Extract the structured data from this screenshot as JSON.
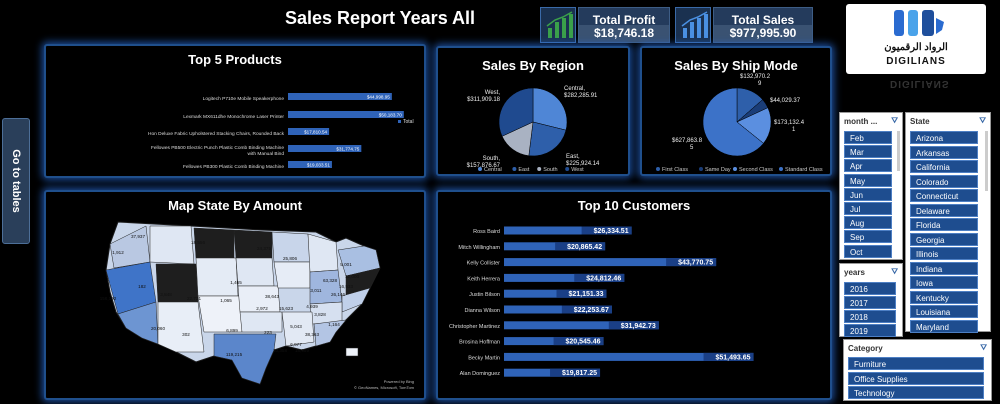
{
  "header": {
    "title": "Sales Report Years All"
  },
  "kpis": {
    "profit_label": "Total Profit",
    "profit_value": "$18,746.18",
    "sales_label": "Total Sales",
    "sales_value": "$977,995.90"
  },
  "logo": {
    "arabic": "الرواد الرقميون",
    "latin": "DIGILIANS"
  },
  "nav": {
    "go_to_tables": "Go to tables"
  },
  "chart_data": [
    {
      "type": "bar",
      "id": "top5",
      "title": "Top 5 Products",
      "categories": [
        "Logitech P710e Mobile Speakerphone",
        "Lexmark MX611dhe Monochrome Laser Printer",
        "Hon Deluxe Fabric Upholstered Stacking Chairs, Rounded Back",
        "Fellowes PB500 Electric Punch Plastic Comb Binding Machine with Manual Bind",
        "Fellowes PB300 Plastic Comb Binding Machine"
      ],
      "values": [
        44998.95,
        50183.7,
        17810.54,
        31774.75,
        19033.51
      ],
      "labels": [
        "$44,998.95",
        "$50,183.70",
        "$17,810.54",
        "$31,774.75",
        "$19,033.51"
      ],
      "legend": "Total"
    },
    {
      "type": "pie",
      "id": "region",
      "title": "Sales By Region",
      "slices": [
        {
          "name": "Central",
          "value": 282285.91,
          "label": "Central, $282,285.91",
          "color": "#4f86d6"
        },
        {
          "name": "East",
          "value": 225924.14,
          "label": "East, $225,924.14",
          "color": "#2e5faa"
        },
        {
          "name": "South",
          "value": 157876.67,
          "label": "South, $157,876.67",
          "color": "#a9b2c2"
        },
        {
          "name": "West",
          "value": 311909.18,
          "label": "West, $311,909.18",
          "color": "#1f4a8f"
        }
      ],
      "legend": [
        "Central",
        "East",
        "South",
        "West"
      ]
    },
    {
      "type": "pie",
      "id": "shipmode",
      "title": "Sales By Ship Mode",
      "slices": [
        {
          "name": "First Class",
          "value": 132970.29,
          "label": "$132,970.29",
          "color": "#2e5faa"
        },
        {
          "name": "Same Day",
          "value": 44029.37,
          "label": "$44,029.37",
          "color": "#1a3d78"
        },
        {
          "name": "Second Class",
          "value": 173132.41,
          "label": "$173,132.41",
          "color": "#5b8fe0"
        },
        {
          "name": "Standard Class",
          "value": 627863.85,
          "label": "$627,863.85",
          "color": "#3c72c8"
        }
      ],
      "legend": [
        "First Class",
        "Same Day",
        "Second Class",
        "Standard Class"
      ]
    },
    {
      "type": "map",
      "id": "statemap",
      "title": "Map State By Amount",
      "labels": [
        "37,937",
        "18,556",
        "1,912",
        "24,375",
        "25,806",
        "63,328",
        "156,192",
        "182",
        "3,848",
        "22,731",
        "1,465",
        "1,065",
        "38,643",
        "26,146",
        "20,060",
        "2,972",
        "15,623",
        "4,939",
        "3,828",
        "6,899",
        "223",
        "1,164",
        "302",
        "18,959",
        "119,215",
        "10,358",
        "6,977",
        "38,363",
        "16,533",
        "5,001",
        "12,000",
        "3,011",
        "5,043"
      ],
      "credit_1": "Powered by Bing",
      "credit_2": "© GeoNames, Microsoft, TomTom"
    },
    {
      "type": "bar",
      "id": "top10",
      "title": "Top 10 Customers",
      "categories": [
        "Ross Baird",
        "Mitch Willingham",
        "Kelly Collister",
        "Keith Herrera",
        "Justin Bilson",
        "Dianna Wilson",
        "Christopher Martinez",
        "Brosina Hoffman",
        "Becky Martin",
        "Alan Dominguez"
      ],
      "values": [
        26334.51,
        20865.42,
        43770.75,
        24812.46,
        21151.33,
        22253.67,
        31942.73,
        20545.46,
        51493.65,
        19817.25
      ],
      "labels": [
        "$26,334.51",
        "$20,865.42",
        "$43,770.75",
        "$24,812.46",
        "$21,151.33",
        "$22,253.67",
        "$31,942.73",
        "$20,545.46",
        "$51,493.65",
        "$19,817.25"
      ]
    }
  ],
  "slicers": {
    "month": {
      "title": "month ...",
      "items": [
        "Feb",
        "Mar",
        "Apr",
        "May",
        "Jun",
        "Jul",
        "Aug",
        "Sep",
        "Oct"
      ]
    },
    "state": {
      "title": "State",
      "items": [
        "Arizona",
        "Arkansas",
        "California",
        "Colorado",
        "Connecticut",
        "Delaware",
        "Florida",
        "Georgia",
        "Illinois",
        "Indiana",
        "Iowa",
        "Kentucky",
        "Louisiana",
        "Maryland"
      ]
    },
    "years": {
      "title": "years",
      "items": [
        "2016",
        "2017",
        "2018",
        "2019"
      ]
    },
    "category": {
      "title": "Category",
      "items": [
        "Furniture",
        "Office Supplies",
        "Technology"
      ]
    }
  }
}
